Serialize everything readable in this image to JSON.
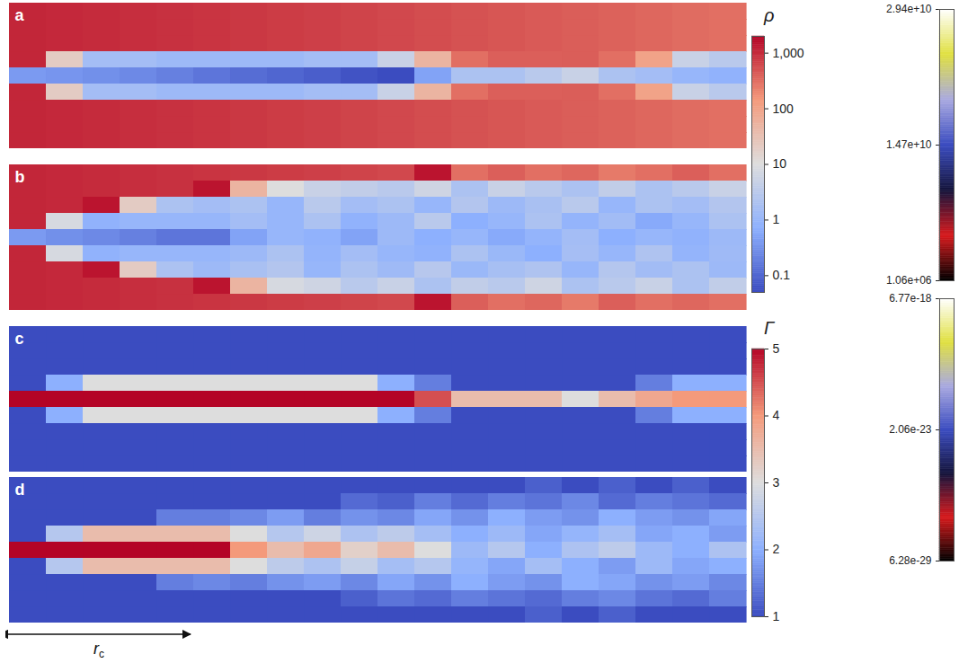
{
  "chart_data": {
    "type": "heatmap",
    "panels": [
      {
        "label": "a",
        "colorbar": "ρ",
        "cells": [
          [
            1100,
            1050,
            1000,
            950,
            900,
            850,
            800,
            750,
            700,
            650,
            600,
            550,
            500,
            470,
            440,
            410,
            380,
            350,
            320,
            300
          ],
          [
            1100,
            1050,
            1000,
            950,
            900,
            850,
            800,
            750,
            700,
            650,
            600,
            550,
            500,
            470,
            440,
            410,
            380,
            350,
            320,
            300
          ],
          [
            1100,
            1050,
            1000,
            950,
            900,
            850,
            800,
            750,
            700,
            650,
            600,
            550,
            500,
            470,
            440,
            410,
            380,
            350,
            320,
            300
          ],
          [
            1100,
            20,
            1.5,
            1.5,
            1.2,
            1.2,
            1.2,
            1.2,
            1.5,
            1.5,
            5,
            50,
            300,
            400,
            400,
            410,
            300,
            100,
            5,
            3
          ],
          [
            0.4,
            0.35,
            0.3,
            0.25,
            0.2,
            0.15,
            0.12,
            0.1,
            0.08,
            0.06,
            0.05,
            0.5,
            2,
            2,
            3,
            5,
            2,
            1.5,
            1,
            0.8
          ],
          [
            1100,
            20,
            1.5,
            1.5,
            1.2,
            1.2,
            1.2,
            1.2,
            1.5,
            1.5,
            5,
            50,
            300,
            400,
            400,
            410,
            300,
            100,
            5,
            3
          ],
          [
            1100,
            1050,
            1000,
            950,
            900,
            850,
            800,
            750,
            700,
            650,
            600,
            550,
            500,
            470,
            440,
            410,
            380,
            350,
            320,
            300
          ],
          [
            1100,
            1050,
            1000,
            950,
            900,
            850,
            800,
            750,
            700,
            650,
            600,
            550,
            500,
            470,
            440,
            410,
            380,
            350,
            320,
            300
          ],
          [
            1100,
            1050,
            1000,
            950,
            900,
            850,
            800,
            750,
            700,
            650,
            600,
            550,
            500,
            470,
            440,
            410,
            380,
            350,
            320,
            300
          ]
        ]
      },
      {
        "label": "b",
        "colorbar": "ρ",
        "cells": [
          [
            1100,
            1050,
            1000,
            950,
            900,
            850,
            800,
            750,
            700,
            650,
            600,
            1500,
            300,
            400,
            300,
            350,
            250,
            300,
            400,
            300
          ],
          [
            1100,
            1050,
            1000,
            950,
            900,
            1500,
            50,
            10,
            5,
            4,
            3,
            6,
            2,
            5,
            3,
            2,
            4,
            2,
            3,
            5
          ],
          [
            1100,
            1050,
            1500,
            20,
            2,
            1.5,
            2,
            1,
            3,
            1.5,
            2,
            1,
            2.5,
            1.2,
            1.8,
            3,
            1,
            2,
            1.5,
            2.5
          ],
          [
            1100,
            8,
            0.8,
            1,
            1,
            1,
            1.5,
            1,
            2,
            0.8,
            1.2,
            3,
            0.7,
            1,
            2,
            0.9,
            1.4,
            0.6,
            1,
            2
          ],
          [
            0.4,
            0.3,
            0.25,
            0.2,
            0.15,
            0.15,
            0.5,
            1,
            0.8,
            0.5,
            1.2,
            0.7,
            1,
            0.6,
            0.9,
            1.5,
            0.7,
            1,
            0.8,
            1.2
          ],
          [
            1100,
            8,
            0.8,
            1,
            1,
            1,
            1.2,
            2,
            0.9,
            1.5,
            1,
            0.8,
            2,
            1.1,
            0.7,
            1.6,
            1,
            2.2,
            0.9,
            1.3
          ],
          [
            1100,
            1050,
            1500,
            20,
            2,
            1.2,
            1.8,
            2.5,
            1,
            2,
            1.3,
            2.8,
            1.1,
            1.7,
            2.2,
            1,
            2.6,
            1.4,
            2,
            1.2
          ],
          [
            1100,
            1050,
            1000,
            950,
            900,
            1500,
            50,
            8,
            6,
            3,
            5,
            2,
            4,
            3,
            6,
            2,
            3,
            5,
            2,
            4
          ],
          [
            1100,
            1050,
            1000,
            950,
            900,
            850,
            800,
            750,
            700,
            650,
            600,
            1500,
            400,
            300,
            350,
            250,
            400,
            300,
            350,
            300
          ]
        ]
      },
      {
        "label": "c",
        "colorbar": "Γ",
        "cells": [
          [
            1,
            1,
            1,
            1,
            1,
            1,
            1,
            1,
            1,
            1,
            1,
            1,
            1,
            1,
            1,
            1,
            1,
            1,
            1,
            1
          ],
          [
            1,
            1,
            1,
            1,
            1,
            1,
            1,
            1,
            1,
            1,
            1,
            1,
            1,
            1,
            1,
            1,
            1,
            1,
            1,
            1
          ],
          [
            1,
            1,
            1,
            1,
            1,
            1,
            1,
            1,
            1,
            1,
            1,
            1,
            1,
            1,
            1,
            1,
            1,
            1,
            1,
            1
          ],
          [
            1,
            2,
            3,
            3,
            3,
            3,
            3,
            3,
            3,
            3,
            2,
            1.5,
            1,
            1,
            1,
            1,
            1,
            1.5,
            2,
            2
          ],
          [
            5,
            5,
            5,
            5,
            5,
            5,
            5,
            5,
            5,
            5,
            5,
            4.5,
            3.5,
            3.5,
            3.5,
            3,
            3.5,
            3.8,
            4,
            4
          ],
          [
            1,
            2,
            3,
            3,
            3,
            3,
            3,
            3,
            3,
            3,
            2,
            1.5,
            1,
            1,
            1,
            1,
            1,
            1.5,
            2,
            2
          ],
          [
            1,
            1,
            1,
            1,
            1,
            1,
            1,
            1,
            1,
            1,
            1,
            1,
            1,
            1,
            1,
            1,
            1,
            1,
            1,
            1
          ],
          [
            1,
            1,
            1,
            1,
            1,
            1,
            1,
            1,
            1,
            1,
            1,
            1,
            1,
            1,
            1,
            1,
            1,
            1,
            1,
            1
          ],
          [
            1,
            1,
            1,
            1,
            1,
            1,
            1,
            1,
            1,
            1,
            1,
            1,
            1,
            1,
            1,
            1,
            1,
            1,
            1,
            1
          ]
        ]
      },
      {
        "label": "d",
        "colorbar": "Γ",
        "cells": [
          [
            1,
            1,
            1,
            1,
            1,
            1,
            1,
            1,
            1,
            1,
            1,
            1,
            1,
            1,
            1.2,
            1,
            1.2,
            1,
            1.2,
            1
          ],
          [
            1,
            1,
            1,
            1,
            1,
            1,
            1,
            1,
            1,
            1.3,
            1.2,
            1.5,
            1.3,
            1.5,
            1.4,
            1.6,
            1.3,
            1.5,
            1.4,
            1.3
          ],
          [
            1,
            1,
            1,
            1,
            1.5,
            1.5,
            1.6,
            1.8,
            1.5,
            1.7,
            1.6,
            1.9,
            1.7,
            2,
            1.8,
            1.7,
            2,
            1.8,
            1.7,
            1.9
          ],
          [
            1,
            2.5,
            3.5,
            3.5,
            3.5,
            3.5,
            3,
            2.5,
            2.8,
            2.4,
            2.6,
            2.3,
            2,
            2.2,
            1.9,
            2.1,
            2.3,
            1.9,
            2,
            1.8
          ],
          [
            5,
            5,
            5,
            5,
            5,
            5,
            4,
            3.5,
            3.8,
            3.2,
            3.5,
            3,
            2.2,
            2.5,
            2,
            2.4,
            2.6,
            2.2,
            2,
            2.4
          ],
          [
            1,
            2.5,
            3.5,
            3.5,
            3.5,
            3.5,
            3,
            2.6,
            2.4,
            2.7,
            2.3,
            2.5,
            2.1,
            1.9,
            2.3,
            2,
            1.8,
            2.2,
            1.9,
            2
          ],
          [
            1,
            1,
            1,
            1,
            1.5,
            1.6,
            1.5,
            1.7,
            1.8,
            1.6,
            1.9,
            1.7,
            2,
            1.8,
            1.7,
            2,
            1.9,
            1.7,
            1.8,
            1.6
          ],
          [
            1,
            1,
            1,
            1,
            1,
            1,
            1,
            1,
            1,
            1.2,
            1.4,
            1.3,
            1.5,
            1.4,
            1.3,
            1.5,
            1.6,
            1.4,
            1.3,
            1.5
          ],
          [
            1,
            1,
            1,
            1,
            1,
            1,
            1,
            1,
            1,
            1,
            1,
            1,
            1,
            1,
            1.2,
            1,
            1.2,
            1,
            1,
            1
          ]
        ]
      }
    ],
    "colorbars": [
      {
        "title": "ρ",
        "log": true,
        "lim": [
          0.05,
          2000
        ],
        "ticks": [
          0.1,
          1,
          10,
          100,
          {
            "value": 1000,
            "label": "1,000"
          }
        ]
      },
      {
        "title": "Γ",
        "lim": [
          1,
          5
        ],
        "ticks": [
          1,
          2,
          3,
          4,
          5
        ]
      },
      {
        "lim": [
          1060000.0,
          29400000000.0
        ],
        "ticks": [
          {
            "value": 1060000.0,
            "label": "1.06e+06"
          },
          {
            "value": 14700000000.0,
            "label": "1.47e+10"
          },
          {
            "value": 29400000000.0,
            "label": "2.94e+10"
          }
        ]
      },
      {
        "log": true,
        "lim": [
          6.28e-29,
          6.77e-18
        ],
        "ticks": [
          {
            "value": 6.28e-29,
            "label": "6.28e-29"
          },
          {
            "value": 2.06e-23,
            "label": "2.06e-23"
          },
          {
            "value": 6.77e-18,
            "label": "6.77e-18"
          }
        ]
      }
    ],
    "annotation": {
      "text": "r",
      "subscript": "c"
    }
  }
}
